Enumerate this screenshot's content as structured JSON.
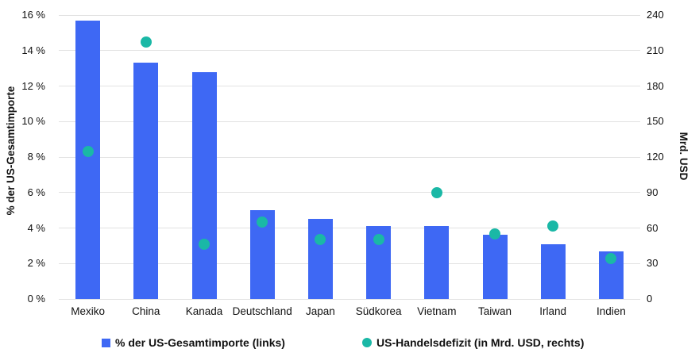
{
  "chart_data": {
    "type": "bar",
    "subtype": "combo-bar-and-scatter-dual-axis",
    "categories": [
      "Mexiko",
      "China",
      "Kanada",
      "Deutschland",
      "Japan",
      "Südkorea",
      "Vietnam",
      "Taiwan",
      "Irland",
      "Indien"
    ],
    "series": [
      {
        "name": "% der US-Gesamtimporte (links)",
        "type": "bar",
        "axis": "left",
        "unit": "%",
        "color": "#3e68f4",
        "values": [
          15.7,
          13.3,
          12.8,
          5.0,
          4.5,
          4.1,
          4.1,
          3.6,
          3.1,
          2.7
        ]
      },
      {
        "name": "US-Handelsdefizit (in Mrd. USD, rechts)",
        "type": "scatter",
        "axis": "right",
        "unit": "Mrd. USD",
        "color": "#1ab8a6",
        "values": [
          125,
          217,
          46,
          65,
          50,
          50,
          90,
          55,
          62,
          34
        ]
      }
    ],
    "left_axis": {
      "title": "% der US-Gesamtimporte",
      "min": 0,
      "max": 16,
      "step": 2,
      "tick_labels": [
        "0 %",
        "2 %",
        "4 %",
        "6 %",
        "8 %",
        "10 %",
        "12 %",
        "14 %",
        "16 %"
      ]
    },
    "right_axis": {
      "title": "Mrd. USD",
      "min": 0,
      "max": 240,
      "step": 30,
      "tick_labels": [
        "0",
        "30",
        "60",
        "90",
        "120",
        "150",
        "180",
        "210",
        "240"
      ]
    },
    "grid": true,
    "legend_position": "bottom",
    "background": "#ffffff",
    "gridline_color": "#e2e2e2"
  }
}
